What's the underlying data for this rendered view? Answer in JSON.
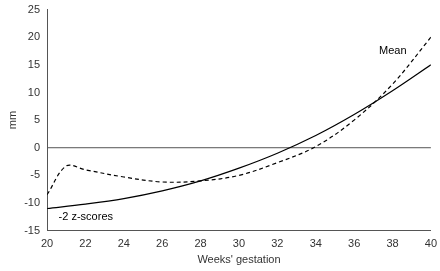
{
  "chart_data": {
    "type": "line",
    "x_label": "Weeks' gestation",
    "y_label": "mm",
    "xlim": [
      20,
      40
    ],
    "xticks": [
      20,
      22,
      24,
      26,
      28,
      30,
      32,
      34,
      36,
      38,
      40
    ],
    "ylim": [
      -15,
      25
    ],
    "yticks": [
      -15,
      -10,
      -5,
      0,
      5,
      10,
      15,
      20,
      25
    ],
    "grid": false,
    "series": [
      {
        "name": "Mean",
        "color": "#000000",
        "line_style": "dashed",
        "x": [
          20,
          21,
          22,
          24,
          26,
          28,
          30,
          32,
          34,
          36,
          38,
          40
        ],
        "values": [
          -8.5,
          -3.3,
          -4,
          -5.3,
          -6.2,
          -6,
          -5,
          -2.7,
          0.2,
          5,
          11.5,
          20
        ]
      },
      {
        "name": "-2 z-scores",
        "color": "#000000",
        "line_style": "solid",
        "x": [
          20,
          22,
          24,
          26,
          28,
          30,
          32,
          34,
          36,
          38,
          40
        ],
        "values": [
          -11,
          -10.2,
          -9.2,
          -7.8,
          -6,
          -3.7,
          -1,
          2.2,
          6,
          10.3,
          15
        ]
      }
    ],
    "annotations": [
      {
        "text": "Mean",
        "x": 37.3,
        "y": 17.5
      },
      {
        "text": "-2 z-scores",
        "x": 20.6,
        "y": -12.5
      }
    ]
  }
}
